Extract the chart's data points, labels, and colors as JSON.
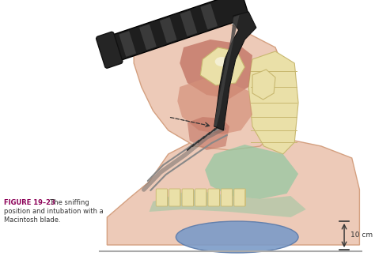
{
  "figure_label": "FIGURE 19–23",
  "figure_label_color": "#8B0057",
  "figure_caption_bold": "FIGURE 19–23",
  "figure_caption_rest": "  The sniffing\nposition and intubation with a\nMacintosh blade.",
  "scale_label": "10 cm",
  "bg_color": "#ffffff",
  "figure_width": 4.74,
  "figure_height": 3.24,
  "dpi": 100,
  "skin_color": "#EDCAB8",
  "skin_edge": "#D4A080",
  "bone_color": "#EAE0A8",
  "bone_edge": "#C8B870",
  "throat_pink": "#D4907A",
  "throat_inner": "#C07060",
  "green_area": "#90C8A0",
  "blue_pillow": "#7B9BC8",
  "blue_pillow_edge": "#5A7AAA",
  "instrument_dark": "#1E1E1E",
  "instrument_mid": "#303030",
  "instrument_light": "#484848",
  "floor_color": "#AAAAAA",
  "arrow_color": "#222222",
  "label_color": "#8B0057"
}
